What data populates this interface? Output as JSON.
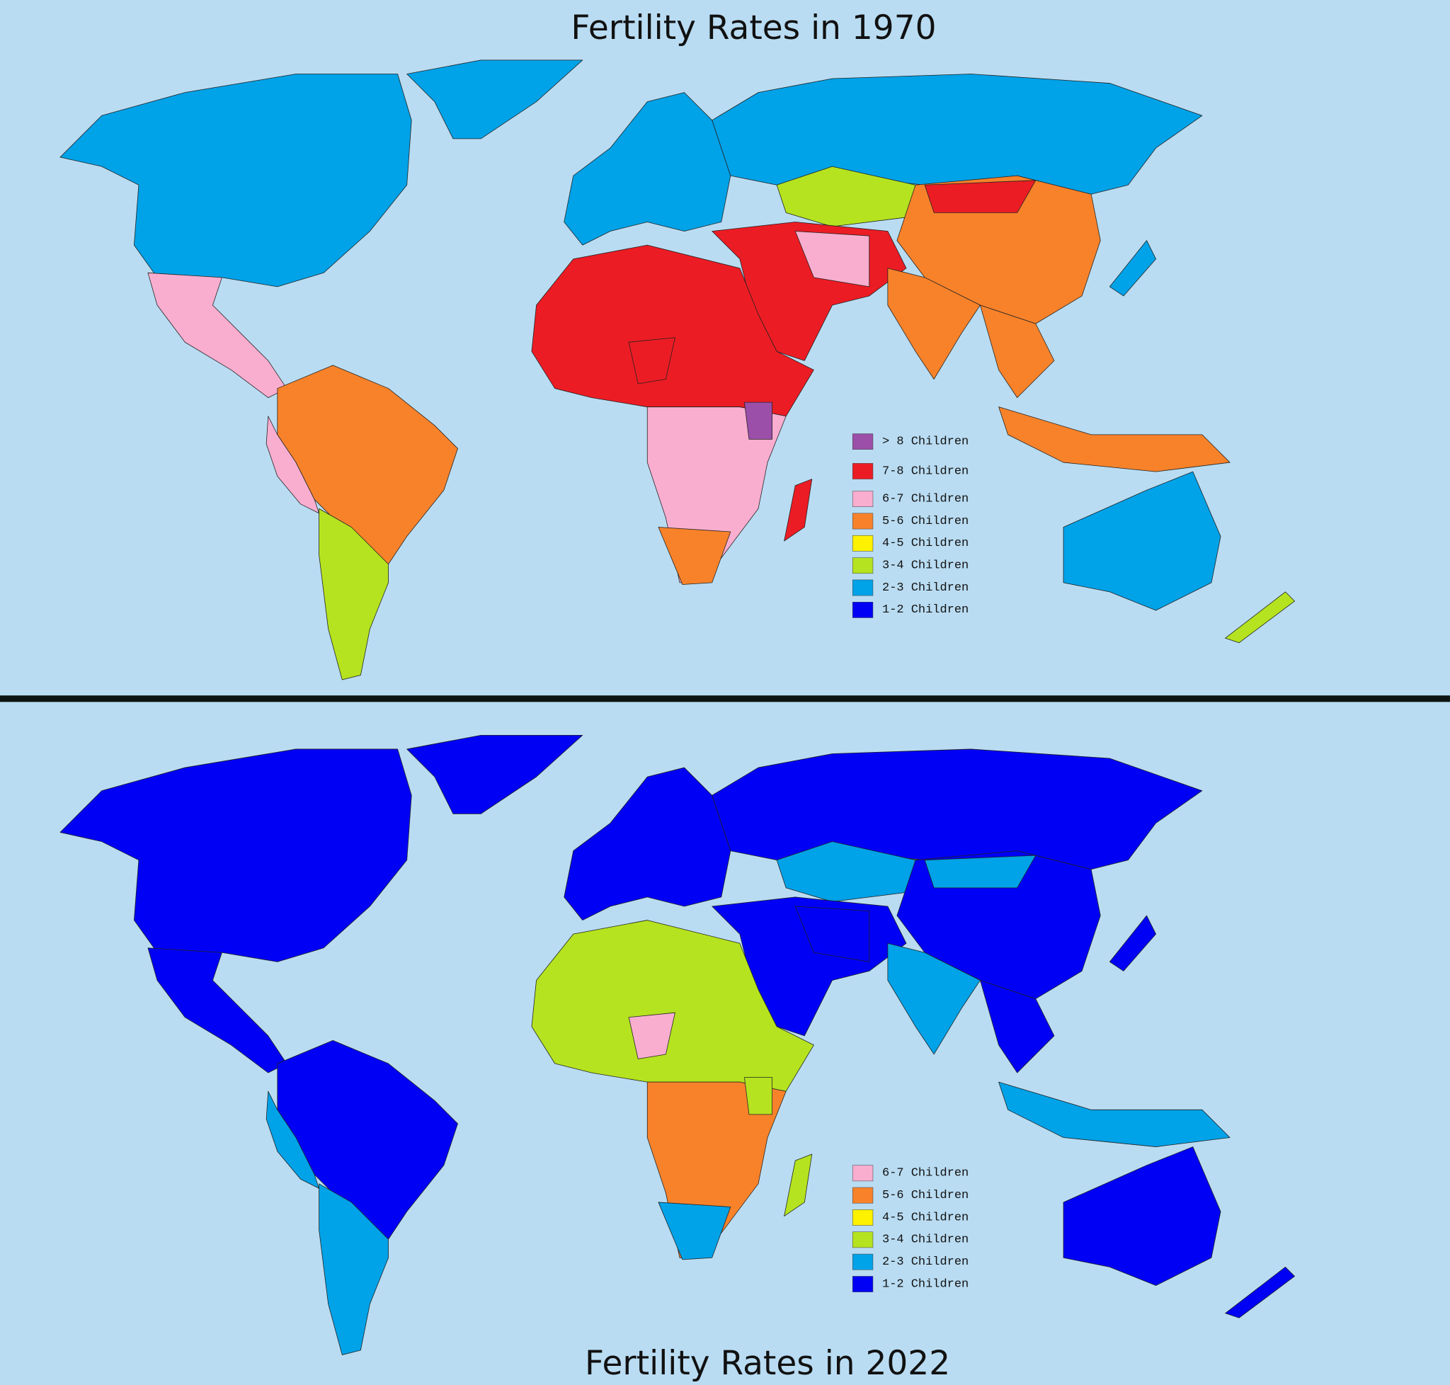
{
  "maps": [
    {
      "title": "Fertility Rates in 1970",
      "legend": [
        {
          "label": "> 8 Children",
          "color": "#9b4fa8"
        },
        {
          "label": "7-8 Children",
          "color": "#ec1c24"
        },
        {
          "label": "6-7 Children",
          "color": "#f9aecf"
        },
        {
          "label": "5-6 Children",
          "color": "#f7822a"
        },
        {
          "label": "4-5 Children",
          "color": "#fff200"
        },
        {
          "label": "3-4 Children",
          "color": "#b5e31f"
        },
        {
          "label": "2-3 Children",
          "color": "#00a2e8"
        },
        {
          "label": "1-2 Children",
          "color": "#0000f5"
        }
      ]
    },
    {
      "title": "Fertility Rates in 2022",
      "legend": [
        {
          "label": "6-7 Children",
          "color": "#f9aecf"
        },
        {
          "label": "5-6 Children",
          "color": "#f7822a"
        },
        {
          "label": "4-5 Children",
          "color": "#fff200"
        },
        {
          "label": "3-4 Children",
          "color": "#b5e31f"
        },
        {
          "label": "2-3 Children",
          "color": "#00a2e8"
        },
        {
          "label": "1-2 Children",
          "color": "#0000f5"
        }
      ]
    }
  ]
}
